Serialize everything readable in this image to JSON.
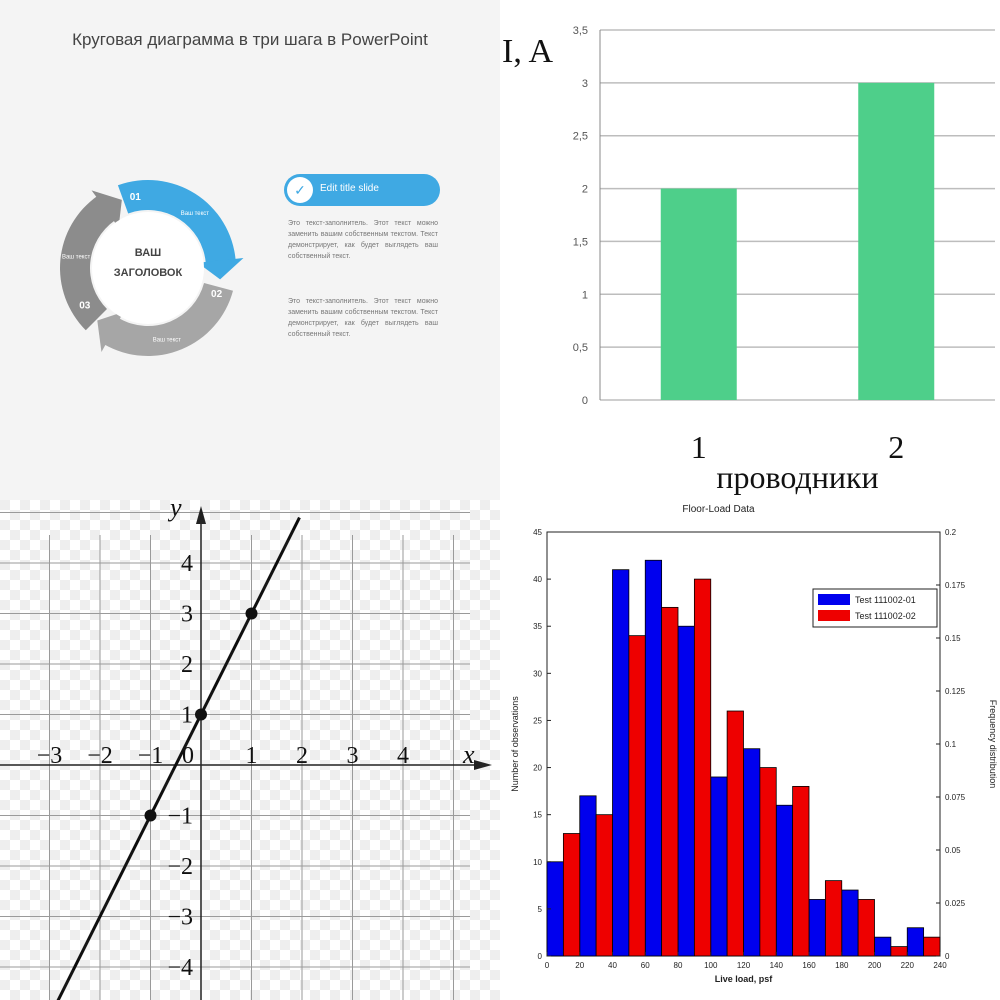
{
  "panel_circle": {
    "title": "Круговая диаграмма в три шага в PowerPoint",
    "center_title": [
      "ВАШ",
      "ЗАГОЛОВОК"
    ],
    "step_numbers": [
      "01",
      "02",
      "03"
    ],
    "step_labels": [
      "Ваш текст",
      "Ваш текст",
      "Ваш текст"
    ],
    "bar_title": "Edit title slide",
    "para1": "Это текст-заполнитель. Этот текст можно заменить вашим собственным текстом. Текст демонстрирует, как будет выглядеть ваш собственный текст.",
    "para2": "Это текст-заполнитель. Этот текст можно заменить вашим собственным текстом. Текст демонстрирует, как будет выглядеть ваш собственный текст.",
    "colors": {
      "blue": "#3fa9e3",
      "gray": "#a6a6a6",
      "gray_dark": "#8c8c8c"
    }
  },
  "chart_data": [
    {
      "type": "bar",
      "ylabel": "I, A",
      "xlabel": "проводники",
      "categories": [
        "1",
        "2"
      ],
      "values": [
        2,
        3
      ],
      "ylim": [
        0,
        3.5
      ],
      "yticks": [
        "0",
        "0,5",
        "1",
        "1,5",
        "2",
        "2,5",
        "3",
        "3,5"
      ],
      "grid": true,
      "color": "#4ecf8a"
    },
    {
      "type": "line",
      "xlabel": "x",
      "ylabel": "y",
      "xlim": [
        -4,
        6
      ],
      "ylim": [
        -5,
        5
      ],
      "xticks": [
        "−3",
        "−2",
        "−1",
        "0",
        "1",
        "2",
        "3",
        "4"
      ],
      "yticks_pos": [
        "1",
        "2",
        "3",
        "4"
      ],
      "yticks_neg": [
        "−1",
        "−2",
        "−3",
        "−4"
      ],
      "line": {
        "slope": 2,
        "intercept": 1
      },
      "points": [
        {
          "x": -1,
          "y": -1
        },
        {
          "x": 0,
          "y": 1
        },
        {
          "x": 1,
          "y": 3
        }
      ],
      "grid": true
    },
    {
      "type": "bar",
      "title": "Floor-Load Data",
      "xlabel": "Live load, psf",
      "ylabel": "Number of observations",
      "y2label": "Frequency distribution",
      "xlim": [
        0,
        240
      ],
      "ylim": [
        0,
        45
      ],
      "y2lim": [
        0,
        0.2
      ],
      "xticks": [
        "0",
        "20",
        "40",
        "60",
        "80",
        "100",
        "120",
        "140",
        "160",
        "180",
        "200",
        "220",
        "240"
      ],
      "yticks": [
        "0",
        "5",
        "10",
        "15",
        "20",
        "25",
        "30",
        "35",
        "40",
        "45"
      ],
      "y2ticks": [
        "0",
        "0.025",
        "0.05",
        "0.075",
        "0.1",
        "0.125",
        "0.15",
        "0.175",
        "0.2"
      ],
      "bin_starts": [
        0,
        10,
        20,
        30,
        40,
        50,
        60,
        70,
        80,
        90,
        100,
        110,
        120,
        130,
        140,
        150,
        160,
        170,
        180,
        190,
        200,
        210,
        220,
        230
      ],
      "series": [
        {
          "name": "Test 111002-01",
          "color": "#0000ee",
          "values": [
            10,
            0,
            17,
            0,
            41,
            0,
            42,
            0,
            35,
            0,
            19,
            0,
            22,
            0,
            16,
            0,
            6,
            0,
            7,
            0,
            2,
            0,
            3,
            0
          ]
        },
        {
          "name": "Test 111002-02",
          "color": "#ee0000",
          "values": [
            0,
            13,
            0,
            15,
            0,
            34,
            0,
            37,
            0,
            40,
            0,
            26,
            0,
            20,
            0,
            18,
            0,
            8,
            0,
            6,
            0,
            1,
            0,
            2
          ]
        }
      ],
      "legend": "top-right"
    }
  ]
}
